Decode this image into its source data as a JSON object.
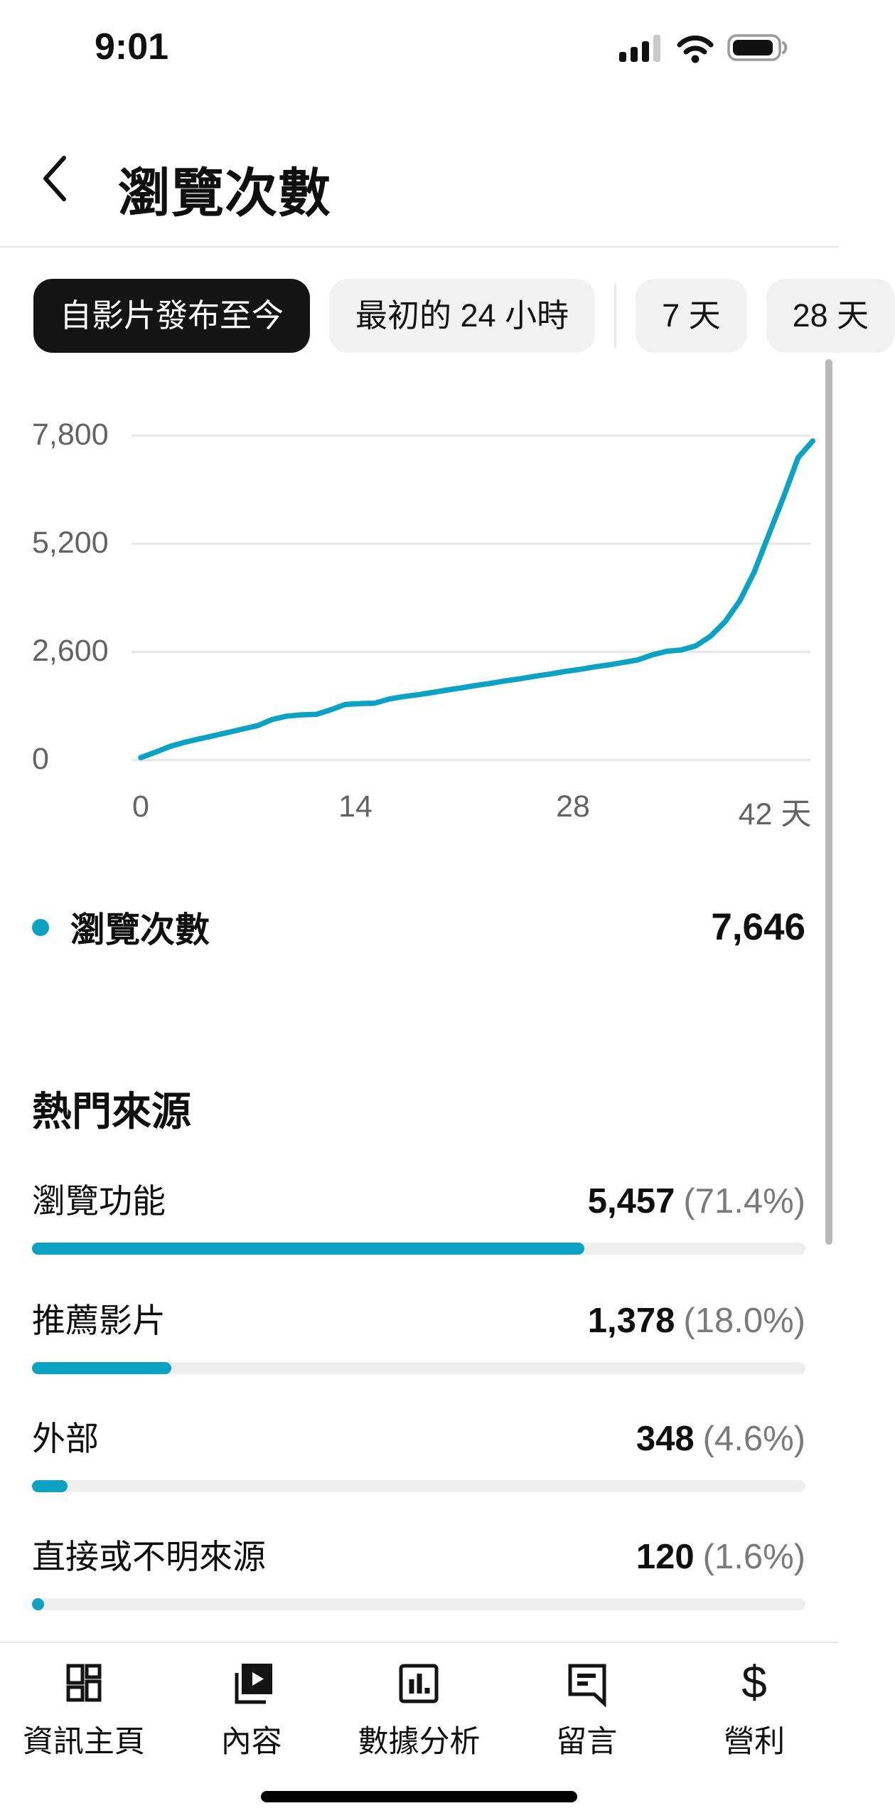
{
  "status_bar": {
    "time": "9:01",
    "cellular_bars_filled": 3,
    "cellular_bars_total": 4,
    "wifi": "full",
    "battery_level": 0.85
  },
  "header": {
    "title": "瀏覽次數"
  },
  "tabs": [
    {
      "label": "自影片發布至今",
      "selected": true
    },
    {
      "label": "最初的 24 小時",
      "selected": false
    },
    {
      "label": "7 天",
      "selected": false
    },
    {
      "label": "28 天",
      "selected": false
    }
  ],
  "chart_data": {
    "type": "line",
    "title": "瀏覽次數",
    "x": [
      0,
      1,
      2,
      3,
      4,
      5,
      6,
      7,
      8,
      9,
      10,
      11,
      12,
      13,
      14,
      15,
      16,
      17,
      18,
      19,
      20,
      21,
      22,
      23,
      24,
      25,
      26,
      27,
      28,
      29,
      30,
      31,
      32,
      33,
      34,
      35,
      36,
      37,
      38,
      39,
      40,
      41,
      42,
      43,
      44,
      45,
      46
    ],
    "values": [
      30,
      160,
      300,
      400,
      480,
      560,
      640,
      720,
      800,
      950,
      1030,
      1060,
      1070,
      1180,
      1310,
      1330,
      1340,
      1440,
      1500,
      1545,
      1600,
      1660,
      1710,
      1770,
      1820,
      1880,
      1930,
      1990,
      2040,
      2100,
      2150,
      2210,
      2260,
      2320,
      2380,
      2500,
      2590,
      2620,
      2720,
      2950,
      3300,
      3800,
      4500,
      5400,
      6300,
      7250,
      7646
    ],
    "xlabel": "天",
    "ylabel": "",
    "xlim": [
      0,
      46
    ],
    "ylim": [
      0,
      7800
    ],
    "ytick_labels_top_down": [
      "7,800",
      "5,200",
      "2,600",
      "0"
    ],
    "ytick_values_top_down": [
      7800,
      5200,
      2600,
      0
    ],
    "xtick_labels": [
      "0",
      "14",
      "28",
      "42 天"
    ],
    "xtick_values": [
      0,
      14,
      28,
      42
    ],
    "grid": true,
    "legend_position": "below",
    "final_value": 7646
  },
  "legend": {
    "label": "瀏覽次數",
    "value": "7,646"
  },
  "sources": {
    "heading": "熱門來源",
    "rows": [
      {
        "label": "瀏覽功能",
        "value": "5,457",
        "percent_label": "(71.4%)",
        "percent": 71.4
      },
      {
        "label": "推薦影片",
        "value": "1,378",
        "percent_label": "(18.0%)",
        "percent": 18.0
      },
      {
        "label": "外部",
        "value": "348",
        "percent_label": "(4.6%)",
        "percent": 4.6
      },
      {
        "label": "直接或不明來源",
        "value": "120",
        "percent_label": "(1.6%)",
        "percent": 1.6
      }
    ]
  },
  "bottom_nav": {
    "items": [
      {
        "label": "資訊主頁",
        "icon": "dashboard-icon"
      },
      {
        "label": "內容",
        "icon": "content-icon"
      },
      {
        "label": "數據分析",
        "icon": "analytics-icon"
      },
      {
        "label": "留言",
        "icon": "comments-icon"
      },
      {
        "label": "營利",
        "icon": "monetization-icon"
      }
    ]
  },
  "colors": {
    "accent": "#0ba2c4",
    "selected_tab_bg": "#141414",
    "grid": "#e8e8e8",
    "track": "#efefef",
    "muted_text": "#636363",
    "percent_text": "#7a7a7a"
  }
}
